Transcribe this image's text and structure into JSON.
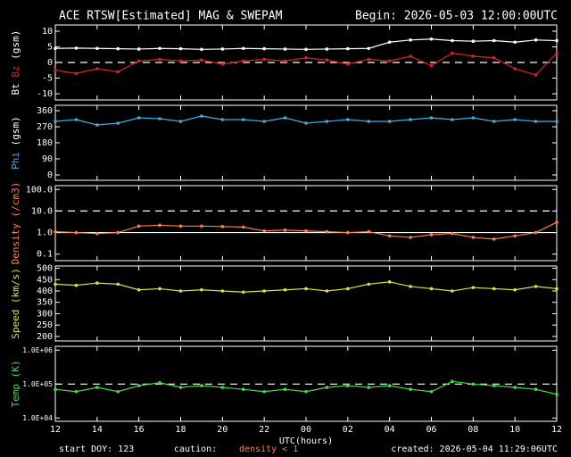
{
  "header": {
    "title": "ACE RTSW[Estimated] MAG & SWEPAM",
    "begin": "Begin: 2026-05-03 12:00:00UTC"
  },
  "footer": {
    "start": "start DOY: 123",
    "caution": "caution:",
    "caution_note": "density < 1",
    "created": "created: 2026-05-04 11:29:06UTC"
  },
  "x_axis": {
    "label": "UTC(hours)",
    "xlim": [
      0,
      24
    ],
    "xticks": [
      {
        "value": 0,
        "label": "12"
      },
      {
        "value": 2,
        "label": "14"
      },
      {
        "value": 4,
        "label": "16"
      },
      {
        "value": 6,
        "label": "18"
      },
      {
        "value": 8,
        "label": "20"
      },
      {
        "value": 10,
        "label": "22"
      },
      {
        "value": 12,
        "label": "00"
      },
      {
        "value": 14,
        "label": "02"
      },
      {
        "value": 16,
        "label": "04"
      },
      {
        "value": 18,
        "label": "06"
      },
      {
        "value": 20,
        "label": "08"
      },
      {
        "value": 22,
        "label": "10"
      },
      {
        "value": 24,
        "label": "12"
      }
    ]
  },
  "chart_data": [
    {
      "type": "line",
      "ylabel": "(gsm)",
      "ylabel_color": "#ffffff",
      "ylim": [
        -12,
        12
      ],
      "yticks": [
        10,
        5,
        0,
        -5,
        -10
      ],
      "ref_lines": [
        {
          "value": 0,
          "style": "dashed"
        }
      ],
      "x": [
        0,
        1,
        2,
        3,
        4,
        5,
        6,
        7,
        8,
        9,
        10,
        11,
        12,
        13,
        14,
        15,
        16,
        17,
        18,
        19,
        20,
        21,
        22,
        23,
        24
      ],
      "series": [
        {
          "name": "Bt",
          "color": "#ffffff",
          "values": [
            4.5,
            4.6,
            4.5,
            4.4,
            4.3,
            4.5,
            4.4,
            4.2,
            4.3,
            4.5,
            4.4,
            4.3,
            4.2,
            4.3,
            4.4,
            4.5,
            6.5,
            7.2,
            7.5,
            7.0,
            6.8,
            7.0,
            6.5,
            7.2,
            7.0
          ]
        },
        {
          "name": "Bz",
          "color": "#e02020",
          "values": [
            -2.5,
            -3.5,
            -2.0,
            -3.0,
            0.5,
            1.0,
            0.5,
            0.8,
            -0.5,
            0.5,
            1.0,
            0.5,
            1.5,
            0.8,
            -0.5,
            1.0,
            0.5,
            2.0,
            -1.0,
            3.0,
            2.0,
            1.5,
            -2.0,
            -4.0,
            3.0
          ]
        }
      ]
    },
    {
      "type": "line",
      "ylabel": "(gsm)",
      "ylabel_color": "#ffffff",
      "ylim": [
        -30,
        390
      ],
      "yticks": [
        360,
        270,
        180,
        90,
        0
      ],
      "x": [
        0,
        1,
        2,
        3,
        4,
        5,
        6,
        7,
        8,
        9,
        10,
        11,
        12,
        13,
        14,
        15,
        16,
        17,
        18,
        19,
        20,
        21,
        22,
        23,
        24
      ],
      "series": [
        {
          "name": "Phi",
          "color": "#40b0e0",
          "values": [
            300,
            310,
            280,
            290,
            320,
            315,
            300,
            330,
            310,
            310,
            300,
            320,
            290,
            300,
            310,
            300,
            300,
            310,
            320,
            310,
            320,
            300,
            310,
            300,
            300
          ]
        }
      ]
    },
    {
      "type": "line",
      "log": true,
      "ylabel": "(/cm3)",
      "ylabel_color": "#ff8040",
      "ylim": [
        0.05,
        150
      ],
      "yticks": [
        {
          "value": 100,
          "label": "100.0"
        },
        {
          "value": 10,
          "label": "10.0"
        },
        {
          "value": 1,
          "label": "1.0"
        },
        {
          "value": 0.1,
          "label": "0.1"
        }
      ],
      "ref_lines": [
        {
          "value": 10,
          "style": "dashed"
        },
        {
          "value": 1,
          "style": "solid"
        }
      ],
      "x": [
        0,
        1,
        2,
        3,
        4,
        5,
        6,
        7,
        8,
        9,
        10,
        11,
        12,
        13,
        14,
        15,
        16,
        17,
        18,
        19,
        20,
        21,
        22,
        23,
        24
      ],
      "series": [
        {
          "name": "Density",
          "color": "#ff8040",
          "values": [
            1.1,
            1.0,
            0.9,
            1.0,
            2.0,
            2.2,
            2.0,
            2.0,
            1.9,
            1.8,
            1.2,
            1.3,
            1.2,
            1.1,
            1.0,
            1.1,
            0.7,
            0.6,
            0.8,
            0.9,
            0.6,
            0.5,
            0.7,
            1.0,
            3.0
          ]
        }
      ]
    },
    {
      "type": "line",
      "ylabel": "(km/s)",
      "ylabel_color": "#e0e040",
      "ylim": [
        180,
        510
      ],
      "yticks": [
        500,
        450,
        400,
        350,
        300,
        250,
        200
      ],
      "x": [
        0,
        1,
        2,
        3,
        4,
        5,
        6,
        7,
        8,
        9,
        10,
        11,
        12,
        13,
        14,
        15,
        16,
        17,
        18,
        19,
        20,
        21,
        22,
        23,
        24
      ],
      "series": [
        {
          "name": "Speed",
          "color": "#e0e040",
          "values": [
            430,
            425,
            435,
            430,
            405,
            410,
            400,
            405,
            400,
            395,
            400,
            405,
            410,
            400,
            410,
            430,
            440,
            420,
            410,
            400,
            415,
            410,
            405,
            420,
            410
          ]
        }
      ]
    },
    {
      "type": "line",
      "log": true,
      "ylabel": "(K)",
      "ylabel_color": "#40e040",
      "ylim": [
        8000,
        1300000
      ],
      "yticks": [
        {
          "value": 1000000,
          "label": "1.0E+06"
        },
        {
          "value": 100000,
          "label": "1.0E+05"
        },
        {
          "value": 10000,
          "label": "1.0E+04"
        }
      ],
      "ref_lines": [
        {
          "value": 100000,
          "style": "dashed"
        }
      ],
      "x": [
        0,
        1,
        2,
        3,
        4,
        5,
        6,
        7,
        8,
        9,
        10,
        11,
        12,
        13,
        14,
        15,
        16,
        17,
        18,
        19,
        20,
        21,
        22,
        23,
        24
      ],
      "series": [
        {
          "name": "Temp",
          "color": "#40e040",
          "values": [
            70000,
            60000,
            80000,
            60000,
            90000,
            110000,
            80000,
            90000,
            80000,
            70000,
            60000,
            70000,
            60000,
            80000,
            90000,
            80000,
            90000,
            70000,
            60000,
            120000,
            100000,
            90000,
            80000,
            70000,
            50000
          ]
        }
      ]
    }
  ]
}
